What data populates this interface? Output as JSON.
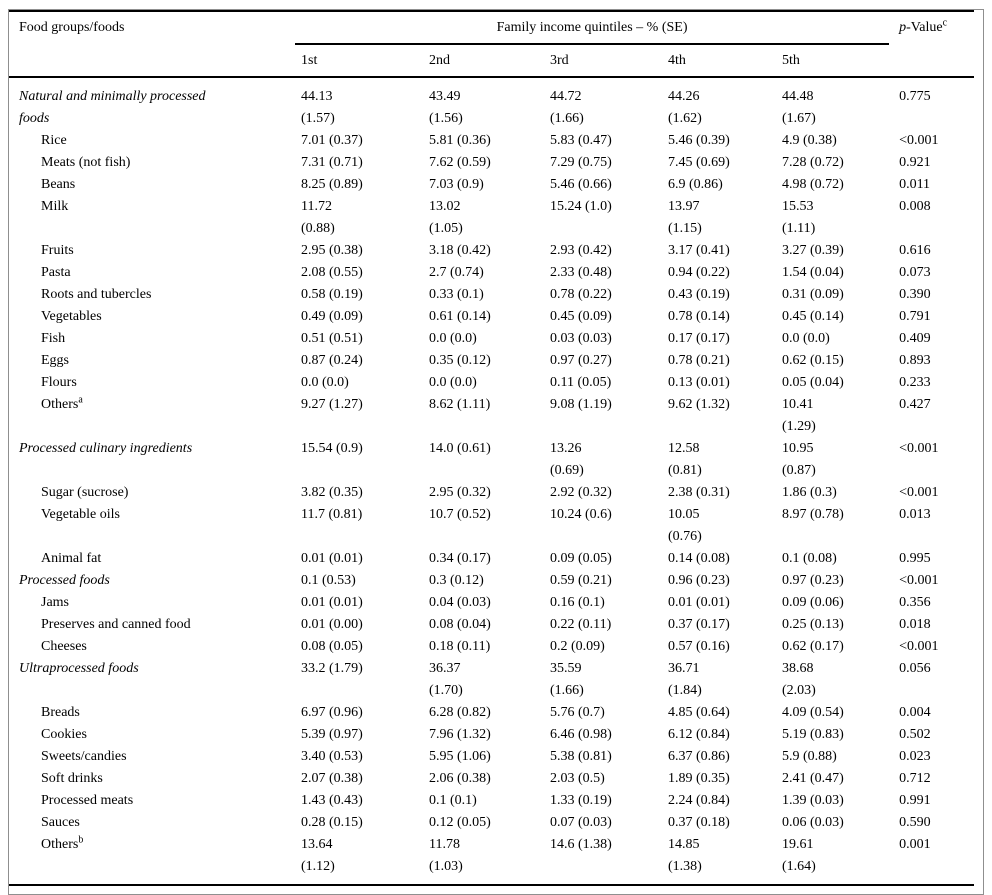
{
  "table": {
    "header": {
      "col1": "Food groups/foods",
      "span": "Family income quintiles – % (SE)",
      "quintiles": [
        "1st",
        "2nd",
        "3rd",
        "4th",
        "5th"
      ],
      "p_italic": "p",
      "p_rest": "-Value",
      "p_sup": "c"
    },
    "rows": [
      {
        "label": "Natural and minimally processed\nfoods",
        "italic": true,
        "indent": false,
        "values": [
          "44.13\n(1.57)",
          "43.49\n(1.56)",
          "44.72\n(1.66)",
          "44.26\n(1.62)",
          "44.48\n(1.67)"
        ],
        "p": "0.775"
      },
      {
        "label": "Rice",
        "italic": false,
        "indent": true,
        "values": [
          "7.01 (0.37)",
          "5.81 (0.36)",
          "5.83 (0.47)",
          "5.46 (0.39)",
          "4.9 (0.38)"
        ],
        "p": "<0.001"
      },
      {
        "label": "Meats (not fish)",
        "italic": false,
        "indent": true,
        "values": [
          "7.31 (0.71)",
          "7.62 (0.59)",
          "7.29 (0.75)",
          "7.45 (0.69)",
          "7.28 (0.72)"
        ],
        "p": "0.921"
      },
      {
        "label": "Beans",
        "italic": false,
        "indent": true,
        "values": [
          "8.25 (0.89)",
          "7.03 (0.9)",
          "5.46 (0.66)",
          "6.9 (0.86)",
          "4.98 (0.72)"
        ],
        "p": "0.011"
      },
      {
        "label": "Milk",
        "italic": false,
        "indent": true,
        "values": [
          "11.72\n(0.88)",
          "13.02\n(1.05)",
          "15.24 (1.0)",
          "13.97\n(1.15)",
          "15.53\n(1.11)"
        ],
        "p": "0.008"
      },
      {
        "label": "Fruits",
        "italic": false,
        "indent": true,
        "values": [
          "2.95 (0.38)",
          "3.18 (0.42)",
          "2.93 (0.42)",
          "3.17 (0.41)",
          "3.27 (0.39)"
        ],
        "p": "0.616"
      },
      {
        "label": "Pasta",
        "italic": false,
        "indent": true,
        "values": [
          "2.08 (0.55)",
          "2.7 (0.74)",
          "2.33 (0.48)",
          "0.94 (0.22)",
          "1.54 (0.04)"
        ],
        "p": "0.073"
      },
      {
        "label": "Roots and tubercles",
        "italic": false,
        "indent": true,
        "values": [
          "0.58 (0.19)",
          "0.33 (0.1)",
          "0.78 (0.22)",
          "0.43 (0.19)",
          "0.31 (0.09)"
        ],
        "p": "0.390"
      },
      {
        "label": "Vegetables",
        "italic": false,
        "indent": true,
        "values": [
          "0.49 (0.09)",
          "0.61 (0.14)",
          "0.45 (0.09)",
          "0.78 (0.14)",
          "0.45 (0.14)"
        ],
        "p": "0.791"
      },
      {
        "label": "Fish",
        "italic": false,
        "indent": true,
        "values": [
          "0.51 (0.51)",
          "0.0 (0.0)",
          "0.03 (0.03)",
          "0.17 (0.17)",
          "0.0 (0.0)"
        ],
        "p": "0.409"
      },
      {
        "label": "Eggs",
        "italic": false,
        "indent": true,
        "values": [
          "0.87 (0.24)",
          "0.35 (0.12)",
          "0.97 (0.27)",
          "0.78 (0.21)",
          "0.62 (0.15)"
        ],
        "p": "0.893"
      },
      {
        "label": "Flours",
        "italic": false,
        "indent": true,
        "values": [
          "0.0 (0.0)",
          "0.0 (0.0)",
          "0.11 (0.05)",
          "0.13 (0.01)",
          "0.05 (0.04)"
        ],
        "p": "0.233"
      },
      {
        "label": "Others",
        "sup": "a",
        "italic": false,
        "indent": true,
        "values": [
          "9.27 (1.27)",
          "8.62 (1.11)",
          "9.08 (1.19)",
          "9.62 (1.32)",
          "10.41\n(1.29)"
        ],
        "p": "0.427"
      },
      {
        "label": "Processed culinary ingredients",
        "italic": true,
        "indent": false,
        "values": [
          "15.54 (0.9)",
          "14.0 (0.61)",
          "13.26\n(0.69)",
          "12.58\n(0.81)",
          "10.95\n(0.87)"
        ],
        "p": "<0.001"
      },
      {
        "label": "Sugar (sucrose)",
        "italic": false,
        "indent": true,
        "values": [
          "3.82 (0.35)",
          "2.95 (0.32)",
          "2.92 (0.32)",
          "2.38 (0.31)",
          "1.86 (0.3)"
        ],
        "p": "<0.001"
      },
      {
        "label": "Vegetable oils",
        "italic": false,
        "indent": true,
        "values": [
          "11.7 (0.81)",
          "10.7 (0.52)",
          "10.24 (0.6)",
          "10.05\n(0.76)",
          "8.97 (0.78)"
        ],
        "p": "0.013"
      },
      {
        "label": "Animal fat",
        "italic": false,
        "indent": true,
        "values": [
          "0.01 (0.01)",
          "0.34 (0.17)",
          "0.09 (0.05)",
          "0.14 (0.08)",
          "0.1 (0.08)"
        ],
        "p": "0.995"
      },
      {
        "label": "Processed foods",
        "italic": true,
        "indent": false,
        "values": [
          "0.1 (0.53)",
          "0.3 (0.12)",
          "0.59 (0.21)",
          "0.96 (0.23)",
          "0.97 (0.23)"
        ],
        "p": "<0.001"
      },
      {
        "label": "Jams",
        "italic": false,
        "indent": true,
        "values": [
          "0.01 (0.01)",
          "0.04 (0.03)",
          "0.16 (0.1)",
          "0.01 (0.01)",
          "0.09 (0.06)"
        ],
        "p": "0.356"
      },
      {
        "label": "Preserves and canned food",
        "italic": false,
        "indent": true,
        "values": [
          "0.01 (0.00)",
          "0.08 (0.04)",
          "0.22 (0.11)",
          "0.37 (0.17)",
          "0.25 (0.13)"
        ],
        "p": "0.018"
      },
      {
        "label": "Cheeses",
        "italic": false,
        "indent": true,
        "values": [
          "0.08 (0.05)",
          "0.18 (0.11)",
          "0.2 (0.09)",
          "0.57 (0.16)",
          "0.62 (0.17)"
        ],
        "p": "<0.001"
      },
      {
        "label": "Ultraprocessed foods",
        "italic": true,
        "indent": false,
        "values": [
          "33.2 (1.79)",
          "36.37\n(1.70)",
          "35.59\n(1.66)",
          "36.71\n(1.84)",
          "38.68\n(2.03)"
        ],
        "p": "0.056"
      },
      {
        "label": "Breads",
        "italic": false,
        "indent": true,
        "values": [
          "6.97 (0.96)",
          "6.28 (0.82)",
          "5.76 (0.7)",
          "4.85 (0.64)",
          "4.09 (0.54)"
        ],
        "p": "0.004"
      },
      {
        "label": "Cookies",
        "italic": false,
        "indent": true,
        "values": [
          "5.39 (0.97)",
          "7.96 (1.32)",
          "6.46 (0.98)",
          "6.12 (0.84)",
          "5.19 (0.83)"
        ],
        "p": "0.502"
      },
      {
        "label": "Sweets/candies",
        "italic": false,
        "indent": true,
        "values": [
          "3.40 (0.53)",
          "5.95 (1.06)",
          "5.38 (0.81)",
          "6.37 (0.86)",
          "5.9 (0.88)"
        ],
        "p": "0.023"
      },
      {
        "label": "Soft drinks",
        "italic": false,
        "indent": true,
        "values": [
          "2.07 (0.38)",
          "2.06 (0.38)",
          "2.03 (0.5)",
          "1.89 (0.35)",
          "2.41 (0.47)"
        ],
        "p": "0.712"
      },
      {
        "label": "Processed meats",
        "italic": false,
        "indent": true,
        "values": [
          "1.43 (0.43)",
          "0.1 (0.1)",
          "1.33 (0.19)",
          "2.24 (0.84)",
          "1.39 (0.03)"
        ],
        "p": "0.991"
      },
      {
        "label": "Sauces",
        "italic": false,
        "indent": true,
        "values": [
          "0.28 (0.15)",
          "0.12 (0.05)",
          "0.07 (0.03)",
          "0.37 (0.18)",
          "0.06 (0.03)"
        ],
        "p": "0.590"
      },
      {
        "label": "Others",
        "sup": "b",
        "italic": false,
        "indent": true,
        "values": [
          "13.64\n(1.12)",
          "11.78\n(1.03)",
          "14.6 (1.38)",
          "14.85\n(1.38)",
          "19.61\n(1.64)"
        ],
        "p": "0.001"
      }
    ]
  }
}
